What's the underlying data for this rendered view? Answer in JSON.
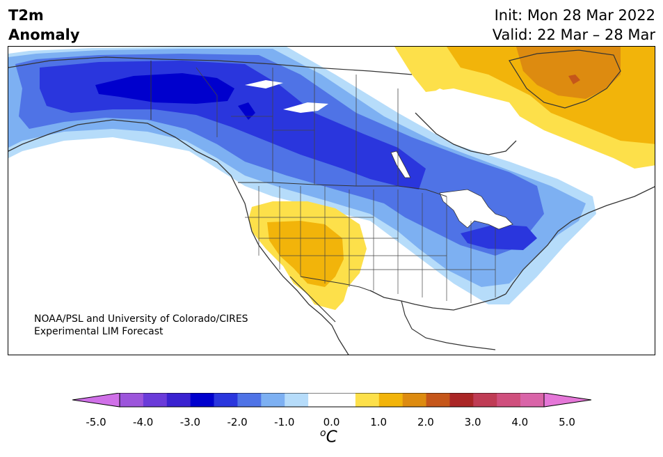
{
  "title": {
    "left_line1": "T2m",
    "left_line2": "Anomaly",
    "init": "Init: Mon 28 Mar 2022",
    "valid": "Valid: 22 Mar – 28 Mar"
  },
  "credit": {
    "line1": "NOAA/PSL and University of Colorado/CIRES",
    "line2": "Experimental LIM Forecast"
  },
  "colorbar": {
    "colors": [
      "#d070e8",
      "#9c55db",
      "#6a3bd9",
      "#3a22d0",
      "#0000cd",
      "#2a36dd",
      "#4f73e6",
      "#7db0f2",
      "#b6dcfa",
      "#ffffff",
      "#ffffff",
      "#fde04a",
      "#f2b40a",
      "#dd8b10",
      "#c5561a",
      "#aa2626",
      "#bf3c55",
      "#cf4f7d",
      "#d964a8",
      "#e577d8"
    ],
    "tick_labels": [
      "-5.0",
      "-4.0",
      "-3.0",
      "-2.0",
      "-1.0",
      "0.0",
      "1.0",
      "2.0",
      "3.0",
      "4.0",
      "5.0"
    ],
    "unit_base": "C",
    "unit_sup": "o"
  }
}
